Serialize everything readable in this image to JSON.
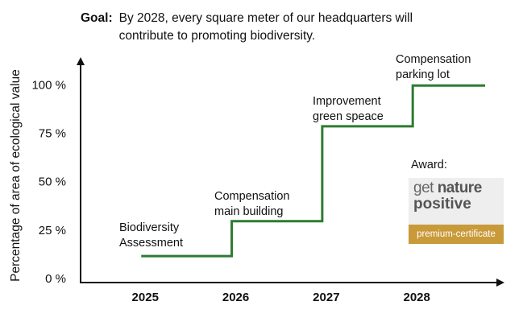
{
  "chart_data": {
    "type": "line",
    "goal_label": "Goal:",
    "goal_text": "By 2028, every square meter of our headquarters will contribute to promoting biodiversity.",
    "y_label": "Percentage of  area of ecological value",
    "xlim": [
      2024.33,
      2028.96
    ],
    "xticks": [
      2025,
      2026,
      2027,
      2028
    ],
    "ylim": [
      0,
      113
    ],
    "yticks": [
      {
        "value": 0,
        "label": "0 %"
      },
      {
        "value": 25,
        "label": "25 %"
      },
      {
        "value": 50,
        "label": "50 %"
      },
      {
        "value": 75,
        "label": "75 %"
      },
      {
        "value": 100,
        "label": "100 %"
      }
    ],
    "grid": false,
    "series": [
      {
        "color": "#2e7b31",
        "x": [
          2025,
          2026,
          2026,
          2027,
          2027,
          2028,
          2028,
          2028.8
        ],
        "values": [
          12,
          12,
          30,
          30,
          79,
          79,
          100,
          100
        ]
      }
    ],
    "annotations": [
      "Biodiversity Assessment",
      "Compensation main building",
      "Improvement green speace",
      "Compensation parking lot"
    ],
    "award": {
      "label": "Award:",
      "logo_get": "get",
      "logo_nature": "nature",
      "logo_positive": "positive",
      "logo_band": "premium-certificate"
    }
  }
}
